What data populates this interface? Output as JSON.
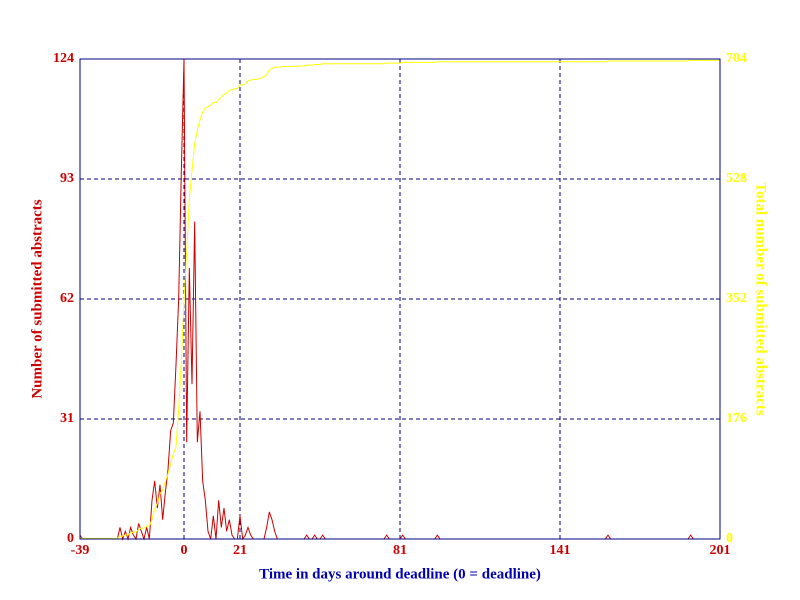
{
  "chart_data": {
    "type": "line",
    "x_label": "Time in days around deadline (0 = deadline)",
    "y_label": "Number of submitted abstracts",
    "y2_label": "Total number of submitted abstracts",
    "xlim": [
      -39,
      201
    ],
    "xticks": [
      -39,
      0,
      21,
      81,
      141,
      201
    ],
    "ylim": [
      0,
      124
    ],
    "yticks": [
      0,
      31,
      62,
      93,
      124
    ],
    "y2lim": [
      0,
      704
    ],
    "y2ticks": [
      0,
      176,
      352,
      528,
      704
    ],
    "grid": true,
    "x": [
      -39,
      -38,
      -37,
      -36,
      -35,
      -34,
      -33,
      -32,
      -31,
      -30,
      -29,
      -28,
      -27,
      -26,
      -25,
      -24,
      -23,
      -22,
      -21,
      -20,
      -19,
      -18,
      -17,
      -16,
      -15,
      -14,
      -13,
      -12,
      -11,
      -10,
      -9,
      -8,
      -7,
      -6,
      -5,
      -4,
      -3,
      -2,
      -1,
      0,
      1,
      2,
      3,
      4,
      5,
      6,
      7,
      8,
      9,
      10,
      11,
      12,
      13,
      14,
      15,
      16,
      17,
      18,
      19,
      20,
      21,
      22,
      23,
      24,
      25,
      26,
      27,
      28,
      29,
      30,
      31,
      32,
      33,
      34,
      35,
      36,
      37,
      38,
      39,
      40,
      45,
      46,
      47,
      48,
      49,
      50,
      51,
      52,
      53,
      75,
      76,
      77,
      81,
      82,
      83,
      94,
      95,
      96,
      158,
      159,
      160,
      189,
      190,
      191,
      201
    ],
    "series": [
      {
        "name": "Number of submitted abstracts",
        "color": "#cc0000",
        "axis": "y",
        "values": [
          1,
          0,
          0,
          0,
          0,
          0,
          0,
          0,
          0,
          0,
          0,
          0,
          0,
          0,
          0,
          3,
          0,
          2,
          0,
          3,
          1,
          0,
          4,
          2,
          0,
          3,
          0,
          10,
          15,
          8,
          14,
          5,
          12,
          18,
          28,
          30,
          45,
          62,
          95,
          124,
          25,
          70,
          40,
          82,
          25,
          33,
          15,
          10,
          2,
          0,
          6,
          0,
          10,
          3,
          8,
          2,
          5,
          1,
          0,
          0,
          6,
          0,
          1,
          3,
          1,
          0,
          0,
          0,
          0,
          0,
          3,
          7,
          5,
          2,
          0,
          0,
          0,
          0,
          0,
          0,
          0,
          1,
          0,
          0,
          1,
          0,
          0,
          1,
          0,
          0,
          1,
          0,
          0,
          1,
          0,
          0,
          1,
          0,
          0,
          1,
          0,
          0,
          1,
          0,
          0
        ]
      },
      {
        "name": "Total number of submitted abstracts",
        "color": "#ffff00",
        "axis": "y2",
        "values": [
          1,
          1,
          1,
          1,
          1,
          1,
          1,
          1,
          1,
          1,
          1,
          1,
          1,
          1,
          1,
          4,
          4,
          6,
          6,
          9,
          10,
          10,
          14,
          16,
          16,
          19,
          19,
          29,
          44,
          52,
          66,
          72,
          84,
          96,
          110,
          125,
          135,
          190,
          260,
          350,
          420,
          500,
          540,
          580,
          600,
          615,
          626,
          632,
          634,
          636,
          640,
          640,
          645,
          648,
          652,
          654,
          658,
          659,
          660,
          661,
          666,
          666,
          667,
          672,
          673,
          674,
          674,
          675,
          676,
          678,
          681,
          688,
          690,
          692,
          692,
          692,
          693,
          693,
          693,
          693,
          694,
          695,
          695,
          695,
          696,
          696,
          696,
          697,
          697,
          697,
          698,
          698,
          698,
          699,
          699,
          699,
          700,
          700,
          700,
          701,
          701,
          701,
          702,
          702,
          702
        ]
      }
    ]
  }
}
